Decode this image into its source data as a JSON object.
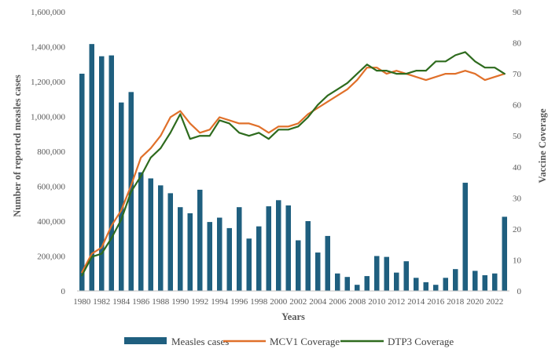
{
  "chart_data": {
    "type": "bar+line",
    "title": "",
    "xlabel": "Years",
    "ylabel": "Number of reported measles cases",
    "y2label": "Vaccine Coverage",
    "ylim": [
      0,
      1600000
    ],
    "y2lim": [
      0,
      90
    ],
    "yticks": [
      0,
      200000,
      400000,
      600000,
      800000,
      1000000,
      1200000,
      1400000,
      1600000
    ],
    "ytick_labels": [
      "0",
      "200,000",
      "400,000",
      "600,000",
      "800,000",
      "1,000,000",
      "1,200,000",
      "1,400,000",
      "1,600,000"
    ],
    "y2ticks": [
      0,
      10,
      20,
      30,
      40,
      50,
      60,
      70,
      80,
      90
    ],
    "y2tick_labels": [
      "0",
      "10",
      "20",
      "30",
      "40",
      "50",
      "60",
      "70",
      "80",
      "90"
    ],
    "grid": false,
    "legend_position": "bottom",
    "x": [
      1980,
      1981,
      1982,
      1983,
      1984,
      1985,
      1986,
      1987,
      1988,
      1989,
      1990,
      1991,
      1992,
      1993,
      1994,
      1995,
      1996,
      1997,
      1998,
      1999,
      2000,
      2001,
      2002,
      2003,
      2004,
      2005,
      2006,
      2007,
      2008,
      2009,
      2010,
      2011,
      2012,
      2013,
      2014,
      2015,
      2016,
      2017,
      2018,
      2019,
      2020,
      2021,
      2022,
      2023
    ],
    "x_tick_labels": [
      "1980",
      "1982",
      "1984",
      "1986",
      "1988",
      "1990",
      "1992",
      "1994",
      "1996",
      "1998",
      "2000",
      "2002",
      "2004",
      "2006",
      "2008",
      "2010",
      "2012",
      "2014",
      "2016",
      "2018",
      "2020",
      "2022"
    ],
    "series": [
      {
        "name": "Measles cases",
        "type": "bar",
        "axis": "left",
        "color": "#1f5f7f",
        "values": [
          1245000,
          1415000,
          1345000,
          1350000,
          1080000,
          1140000,
          680000,
          645000,
          605000,
          560000,
          480000,
          445000,
          580000,
          395000,
          420000,
          360000,
          480000,
          300000,
          370000,
          485000,
          520000,
          490000,
          290000,
          400000,
          220000,
          315000,
          100000,
          80000,
          35000,
          85000,
          200000,
          195000,
          105000,
          170000,
          75000,
          50000,
          35000,
          75000,
          125000,
          620000,
          115000,
          90000,
          100000,
          425000
        ]
      },
      {
        "name": "MCV1 Coverage",
        "type": "line",
        "axis": "right",
        "color": "#e0702a",
        "values": [
          6,
          12,
          14,
          21,
          26,
          34,
          43,
          46,
          50,
          56,
          58,
          54,
          51,
          52,
          56,
          55,
          54,
          54,
          53,
          51,
          53,
          53,
          54,
          57,
          59,
          61,
          63,
          65,
          68,
          72,
          72,
          70,
          71,
          70,
          69,
          68,
          69,
          70,
          70,
          71,
          70,
          68,
          69,
          70
        ]
      },
      {
        "name": "DTP3 Coverage",
        "type": "line",
        "axis": "right",
        "color": "#2e6b1e",
        "values": [
          5,
          11,
          12,
          17,
          23,
          32,
          37,
          43,
          46,
          51,
          57,
          49,
          50,
          50,
          55,
          54,
          51,
          50,
          51,
          49,
          52,
          52,
          53,
          56,
          60,
          63,
          65,
          67,
          70,
          73,
          71,
          71,
          70,
          70,
          71,
          71,
          74,
          74,
          76,
          77,
          74,
          72,
          72,
          70
        ]
      }
    ]
  }
}
